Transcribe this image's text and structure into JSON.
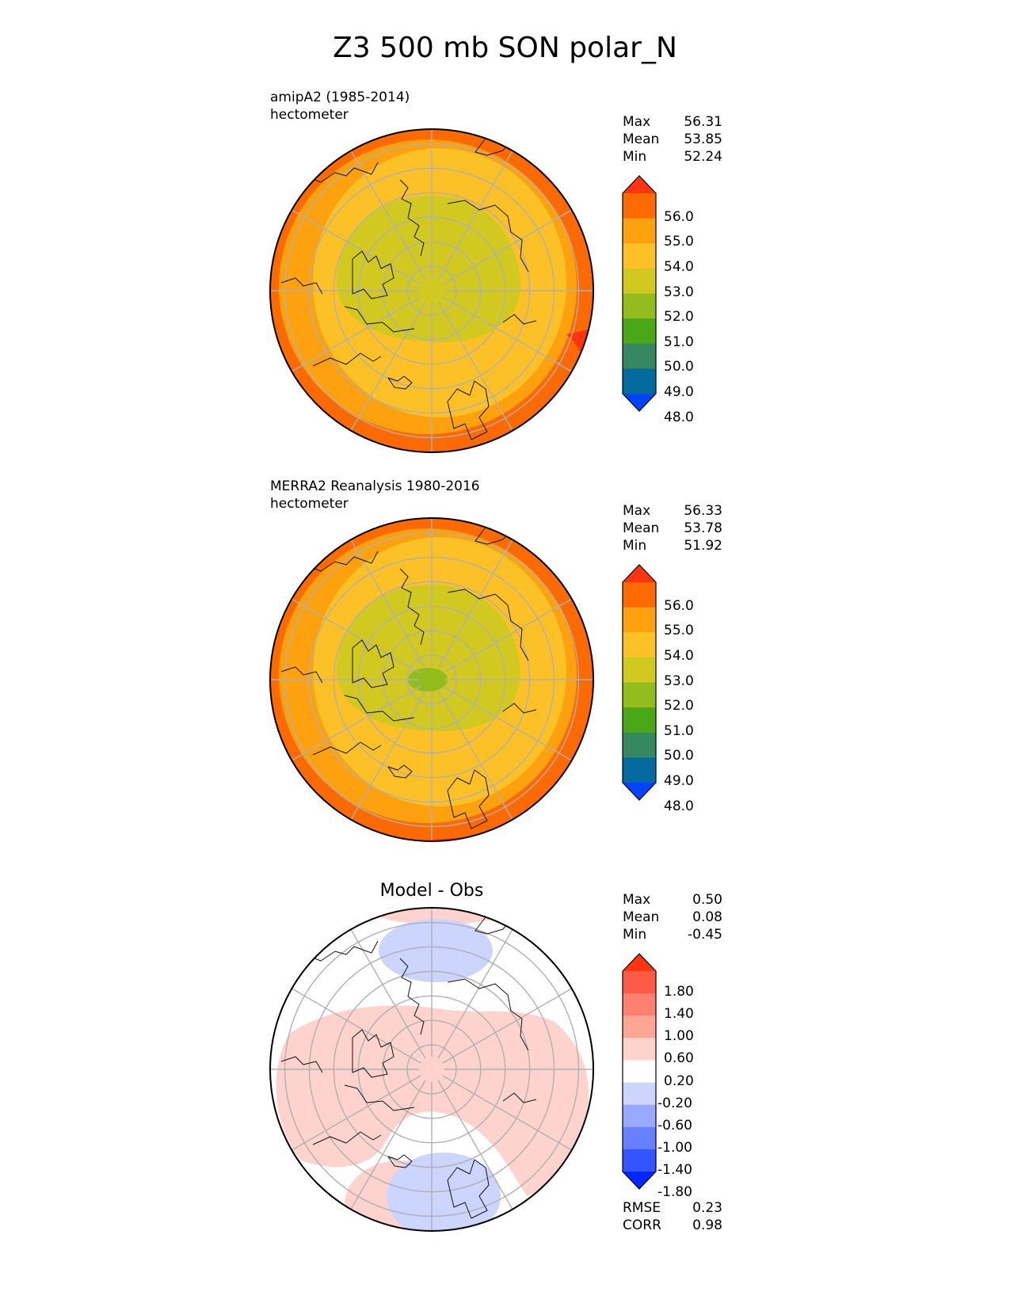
{
  "chart_data": {
    "type": "polar-contour-map",
    "title": "Z3 500 mb SON polar_N",
    "panels": [
      {
        "id": "model",
        "case_label": "amipA2 (1985-2014)",
        "units": "hectometer",
        "subtitle": "",
        "stats": [
          {
            "label": "Max",
            "value": "56.31"
          },
          {
            "label": "Mean",
            "value": "53.85"
          },
          {
            "label": "Min",
            "value": "52.24"
          }
        ],
        "colorbar": {
          "levels": [
            "56.0",
            "55.0",
            "54.0",
            "53.0",
            "52.0",
            "51.0",
            "50.0",
            "49.0",
            "48.0"
          ],
          "colors": [
            "#fe3510",
            "#fe6a02",
            "#fea10e",
            "#fbc126",
            "#d1c820",
            "#93bd1c",
            "#4aa818",
            "#368860",
            "#046b9f",
            "#0044fe"
          ]
        },
        "field": [
          {
            "level": "54.0",
            "color": "#fea10e",
            "shape": "mid ring"
          },
          {
            "level": "53.0",
            "color": "#fbc126",
            "shape": "inner ring"
          },
          {
            "level": "52.0",
            "color": "#d1c820",
            "shape": "polar cap"
          },
          {
            "level": "55.0",
            "color": "#fe6a02",
            "shape": "outer edge"
          },
          {
            "level": "56.0",
            "color": "#fe3510",
            "shape": "edge patch"
          }
        ]
      },
      {
        "id": "obs",
        "case_label": "MERRA2 Reanalysis 1980-2016",
        "units": "hectometer",
        "subtitle": "",
        "stats": [
          {
            "label": "Max",
            "value": "56.33"
          },
          {
            "label": "Mean",
            "value": "53.78"
          },
          {
            "label": "Min",
            "value": "51.92"
          }
        ],
        "colorbar": {
          "levels": [
            "56.0",
            "55.0",
            "54.0",
            "53.0",
            "52.0",
            "51.0",
            "50.0",
            "49.0",
            "48.0"
          ],
          "colors": [
            "#fe3510",
            "#fe6a02",
            "#fea10e",
            "#fbc126",
            "#d1c820",
            "#93bd1c",
            "#4aa818",
            "#368860",
            "#046b9f",
            "#0044fe"
          ]
        },
        "field": [
          {
            "level": "54.0",
            "color": "#fea10e",
            "shape": "mid ring"
          },
          {
            "level": "53.0",
            "color": "#fbc126",
            "shape": "inner ring"
          },
          {
            "level": "52.0",
            "color": "#d1c820",
            "shape": "polar cap"
          },
          {
            "level": "51.0",
            "color": "#93bd1c",
            "shape": "pole core"
          },
          {
            "level": "55.0",
            "color": "#fe6a02",
            "shape": "outer edge"
          },
          {
            "level": "56.0",
            "color": "#fe3510",
            "shape": "edge patch"
          }
        ]
      },
      {
        "id": "diff",
        "case_label": "",
        "units": "",
        "subtitle": "Model - Obs",
        "stats": [
          {
            "label": "Max",
            "value": "0.50"
          },
          {
            "label": "Mean",
            "value": "0.08"
          },
          {
            "label": "Min",
            "value": "-0.45"
          }
        ],
        "colorbar": {
          "levels": [
            "1.80",
            "1.40",
            "1.00",
            "0.60",
            "0.20",
            "-0.20",
            "-0.60",
            "-1.00",
            "-1.40",
            "-1.80"
          ],
          "colors": [
            "#fe3510",
            "#fe5a46",
            "#fe8070",
            "#fea696",
            "#fed3cd",
            "#ffffff",
            "#ccd5fe",
            "#99aafe",
            "#6680fe",
            "#3355fe",
            "#0028fe"
          ]
        },
        "field": [
          {
            "level": "0.20",
            "color": "#fed3cd",
            "shape": "positive band"
          },
          {
            "level": "-0.20",
            "color": "#ccd5fe",
            "shape": "negative lobe"
          }
        ],
        "metrics": [
          {
            "label": "RMSE",
            "value": "0.23"
          },
          {
            "label": "CORR",
            "value": "0.98"
          }
        ]
      }
    ]
  }
}
